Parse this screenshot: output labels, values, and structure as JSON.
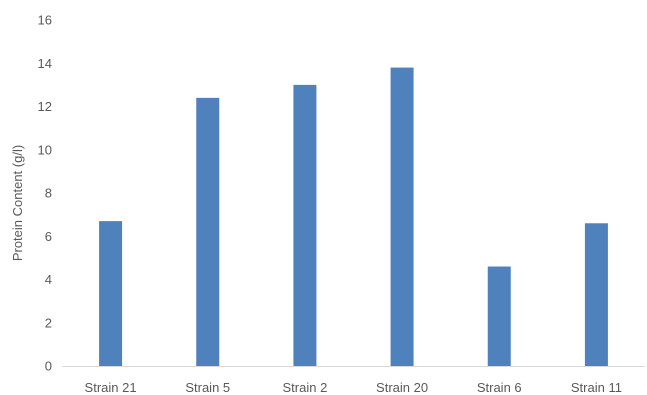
{
  "chart_data": {
    "type": "bar",
    "title": "",
    "xlabel": "",
    "ylabel": "Protein Content (g/l)",
    "categories": [
      "Strain 21",
      "Strain 5",
      "Strain 2",
      "Strain 20",
      "Strain 6",
      "Strain 11"
    ],
    "values": [
      6.7,
      12.4,
      13.0,
      13.8,
      4.6,
      6.6
    ],
    "ylim": [
      0,
      16
    ],
    "yticks": [
      0,
      2,
      4,
      6,
      8,
      10,
      12,
      14,
      16
    ],
    "grid": false,
    "legend": "none",
    "colors": {
      "bar": "#4f81bd",
      "axis": "#d9d9d9",
      "text": "#595959"
    }
  }
}
